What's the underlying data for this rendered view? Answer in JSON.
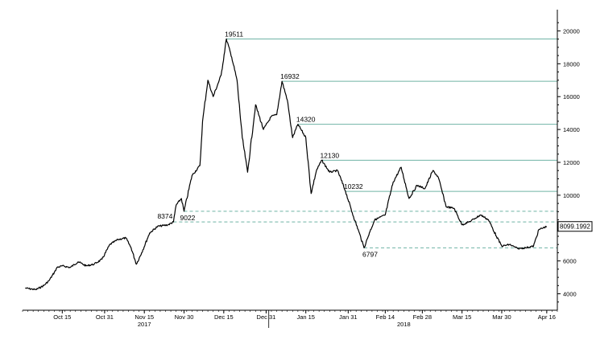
{
  "chart_data": {
    "type": "line",
    "title": "",
    "xlabel": "",
    "ylabel": "",
    "ylim": [
      3000,
      21000
    ],
    "y_ticks": [
      4000,
      6000,
      8000,
      10000,
      12000,
      14000,
      16000,
      18000,
      20000
    ],
    "y_tick_labels": [
      "4000",
      "6000",
      "8000",
      "10000",
      "12000",
      "14000",
      "16000",
      "18000",
      "20000"
    ],
    "x_range": [
      "2017-09-30",
      "2018-04-20"
    ],
    "x_ticks": [
      "2017-10-15",
      "2017-10-31",
      "2017-11-15",
      "2017-11-30",
      "2017-12-15",
      "2017-12-31",
      "2018-01-15",
      "2018-01-31",
      "2018-02-14",
      "2018-02-28",
      "2018-03-15",
      "2018-03-30",
      "2018-04-16"
    ],
    "x_tick_labels": [
      "Oct 15",
      "Oct 31",
      "Nov 15",
      "Nov 30",
      "Dec 15",
      "Dec 31",
      "Jan 15",
      "Jan 31",
      "Feb 14",
      "Feb 28",
      "Mar 15",
      "Mar 30",
      "Apr 16"
    ],
    "year_labels": [
      {
        "date": "2017-11-15",
        "label": "2017"
      },
      {
        "date": "2018-02-21",
        "label": "2018"
      }
    ],
    "last_value_label": "8099.1992",
    "series": [
      {
        "color": "#000000",
        "points": [
          [
            "2017-10-01",
            4350
          ],
          [
            "2017-10-05",
            4250
          ],
          [
            "2017-10-08",
            4500
          ],
          [
            "2017-10-10",
            4800
          ],
          [
            "2017-10-12",
            5300
          ],
          [
            "2017-10-13",
            5600
          ],
          [
            "2017-10-15",
            5700
          ],
          [
            "2017-10-18",
            5600
          ],
          [
            "2017-10-21",
            5950
          ],
          [
            "2017-10-24",
            5700
          ],
          [
            "2017-10-27",
            5800
          ],
          [
            "2017-10-30",
            6100
          ],
          [
            "2017-11-02",
            7000
          ],
          [
            "2017-11-05",
            7300
          ],
          [
            "2017-11-08",
            7400
          ],
          [
            "2017-11-10",
            6800
          ],
          [
            "2017-11-12",
            5800
          ],
          [
            "2017-11-14",
            6500
          ],
          [
            "2017-11-17",
            7700
          ],
          [
            "2017-11-20",
            8100
          ],
          [
            "2017-11-24",
            8200
          ],
          [
            "2017-11-26",
            8374
          ],
          [
            "2017-11-27",
            9400
          ],
          [
            "2017-11-29",
            9800
          ],
          [
            "2017-11-30",
            9022
          ],
          [
            "2017-12-03",
            11200
          ],
          [
            "2017-12-06",
            11800
          ],
          [
            "2017-12-07",
            14500
          ],
          [
            "2017-12-09",
            17000
          ],
          [
            "2017-12-11",
            16000
          ],
          [
            "2017-12-14",
            17300
          ],
          [
            "2017-12-16",
            19511
          ],
          [
            "2017-12-18",
            18400
          ],
          [
            "2017-12-20",
            17000
          ],
          [
            "2017-12-22",
            13500
          ],
          [
            "2017-12-24",
            11400
          ],
          [
            "2017-12-27",
            15500
          ],
          [
            "2017-12-30",
            14000
          ],
          [
            "2018-01-02",
            14800
          ],
          [
            "2018-01-04",
            14900
          ],
          [
            "2018-01-06",
            16932
          ],
          [
            "2018-01-08",
            15800
          ],
          [
            "2018-01-10",
            13500
          ],
          [
            "2018-01-12",
            14320
          ],
          [
            "2018-01-15",
            13500
          ],
          [
            "2018-01-17",
            10100
          ],
          [
            "2018-01-19",
            11500
          ],
          [
            "2018-01-21",
            12130
          ],
          [
            "2018-01-24",
            11400
          ],
          [
            "2018-01-27",
            11500
          ],
          [
            "2018-01-30",
            10232
          ],
          [
            "2018-02-02",
            8700
          ],
          [
            "2018-02-04",
            7800
          ],
          [
            "2018-02-06",
            6797
          ],
          [
            "2018-02-08",
            7700
          ],
          [
            "2018-02-10",
            8500
          ],
          [
            "2018-02-14",
            8800
          ],
          [
            "2018-02-17",
            10800
          ],
          [
            "2018-02-20",
            11700
          ],
          [
            "2018-02-23",
            9800
          ],
          [
            "2018-02-26",
            10600
          ],
          [
            "2018-03-01",
            10400
          ],
          [
            "2018-03-04",
            11500
          ],
          [
            "2018-03-06",
            11100
          ],
          [
            "2018-03-09",
            9300
          ],
          [
            "2018-03-12",
            9200
          ],
          [
            "2018-03-15",
            8200
          ],
          [
            "2018-03-18",
            8400
          ],
          [
            "2018-03-20",
            8600
          ],
          [
            "2018-03-22",
            8800
          ],
          [
            "2018-03-25",
            8500
          ],
          [
            "2018-03-28",
            7500
          ],
          [
            "2018-03-30",
            6900
          ],
          [
            "2018-04-02",
            7000
          ],
          [
            "2018-04-05",
            6750
          ],
          [
            "2018-04-08",
            6800
          ],
          [
            "2018-04-11",
            6900
          ],
          [
            "2018-04-13",
            7900
          ],
          [
            "2018-04-16",
            8099.1992
          ]
        ]
      }
    ],
    "reference_lines": [
      {
        "value": 19511,
        "label": "19511",
        "date": "2017-12-16",
        "style": "solid",
        "color": "#6fb3a5"
      },
      {
        "value": 16932,
        "label": "16932",
        "date": "2018-01-06",
        "style": "solid",
        "color": "#6fb3a5"
      },
      {
        "value": 14320,
        "label": "14320",
        "date": "2018-01-12",
        "style": "solid",
        "color": "#6fb3a5"
      },
      {
        "value": 12130,
        "label": "12130",
        "date": "2018-01-21",
        "style": "solid",
        "color": "#6fb3a5"
      },
      {
        "value": 10232,
        "label": "10232",
        "date": "2018-01-30",
        "style": "solid",
        "color": "#6fb3a5"
      },
      {
        "value": 9022,
        "label": "9022",
        "date": "2017-11-30",
        "style": "dashed",
        "color": "#6fb3a5"
      },
      {
        "value": 8374,
        "label": "8374",
        "date": "2017-11-26",
        "style": "dashed",
        "color": "#6fb3a5"
      },
      {
        "value": 6797,
        "label": "6797",
        "date": "2018-02-06",
        "style": "dashed",
        "color": "#6fb3a5"
      }
    ],
    "grid": false,
    "legend": "none"
  }
}
